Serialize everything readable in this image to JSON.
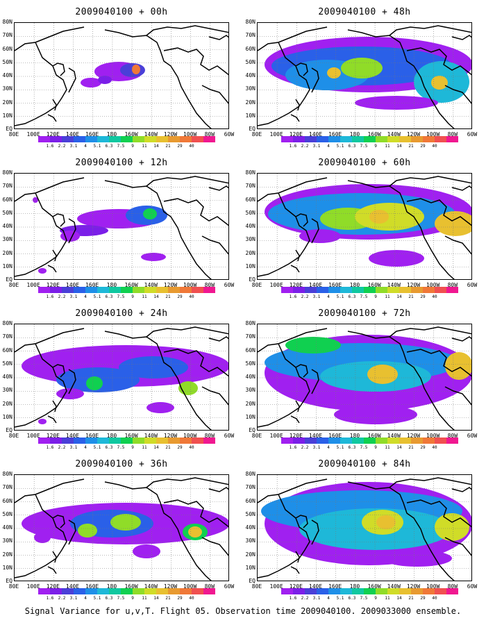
{
  "panels": [
    {
      "title": "2009040100 + 00h",
      "col": 0,
      "row": 0
    },
    {
      "title": "2009040100 + 48h",
      "col": 1,
      "row": 0
    },
    {
      "title": "2009040100 + 12h",
      "col": 0,
      "row": 1
    },
    {
      "title": "2009040100 + 60h",
      "col": 1,
      "row": 1
    },
    {
      "title": "2009040100 + 24h",
      "col": 0,
      "row": 2
    },
    {
      "title": "2009040100 + 72h",
      "col": 1,
      "row": 2
    },
    {
      "title": "2009040100 + 36h",
      "col": 0,
      "row": 3
    },
    {
      "title": "2009040100 + 84h",
      "col": 1,
      "row": 3
    }
  ],
  "y_axis_labels": [
    "80N",
    "70N",
    "60N",
    "50N",
    "40N",
    "30N",
    "20N",
    "10N",
    "EQ"
  ],
  "x_axis_labels": [
    "80E",
    "100E",
    "120E",
    "140E",
    "160E",
    "180",
    "160W",
    "140W",
    "120W",
    "100W",
    "80W",
    "60W"
  ],
  "colorbar": {
    "colors": [
      "#a020f0",
      "#7b1fe8",
      "#4a3fd8",
      "#2a60e8",
      "#1e8fe8",
      "#1eb8d8",
      "#10c8a0",
      "#10d050",
      "#90dc28",
      "#d0dc28",
      "#e8c030",
      "#e89a30",
      "#f07838",
      "#f05050",
      "#f01890"
    ],
    "labels": [
      "1.6",
      "2.2",
      "3.1",
      "4",
      "5.1",
      "6.3",
      "7.5",
      "9",
      "11",
      "14",
      "21",
      "29",
      "40"
    ]
  },
  "caption": "Signal Variance for u,v,T. Flight 05. Observation time 2009040100. 2009033000 ensemble."
}
